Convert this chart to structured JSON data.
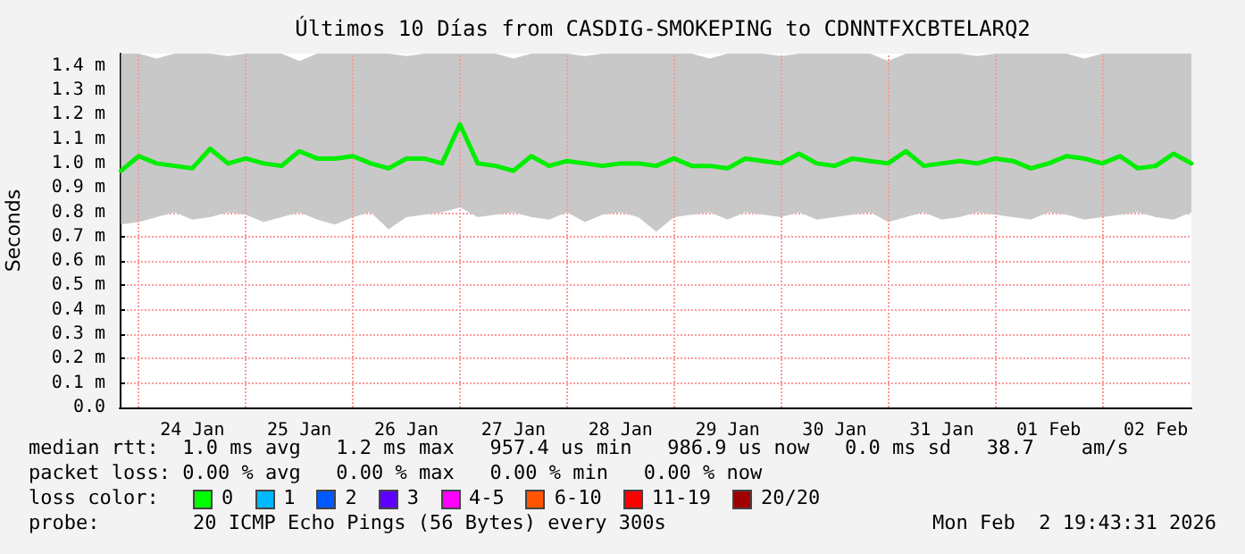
{
  "chart_data": {
    "type": "line",
    "title": "Últimos 10 Días from CASDIG-SMOKEPING to CDNNTFXCBTELARQ2",
    "ylabel": "Seconds",
    "x": [
      "2026-01-23T20:00",
      "2026-01-24T00:00",
      "2026-01-24T04:00",
      "2026-01-24T08:00",
      "2026-01-24T12:00",
      "2026-01-24T16:00",
      "2026-01-24T20:00",
      "2026-01-25T00:00",
      "2026-01-25T04:00",
      "2026-01-25T08:00",
      "2026-01-25T12:00",
      "2026-01-25T16:00",
      "2026-01-25T20:00",
      "2026-01-26T00:00",
      "2026-01-26T04:00",
      "2026-01-26T08:00",
      "2026-01-26T12:00",
      "2026-01-26T16:00",
      "2026-01-26T20:00",
      "2026-01-27T00:00",
      "2026-01-27T04:00",
      "2026-01-27T08:00",
      "2026-01-27T12:00",
      "2026-01-27T16:00",
      "2026-01-27T20:00",
      "2026-01-28T00:00",
      "2026-01-28T04:00",
      "2026-01-28T08:00",
      "2026-01-28T12:00",
      "2026-01-28T16:00",
      "2026-01-28T20:00",
      "2026-01-29T00:00",
      "2026-01-29T04:00",
      "2026-01-29T08:00",
      "2026-01-29T12:00",
      "2026-01-29T16:00",
      "2026-01-29T20:00",
      "2026-01-30T00:00",
      "2026-01-30T04:00",
      "2026-01-30T08:00",
      "2026-01-30T12:00",
      "2026-01-30T16:00",
      "2026-01-30T20:00",
      "2026-01-31T00:00",
      "2026-01-31T04:00",
      "2026-01-31T08:00",
      "2026-01-31T12:00",
      "2026-01-31T16:00",
      "2026-01-31T20:00",
      "2026-02-01T00:00",
      "2026-02-01T04:00",
      "2026-02-01T08:00",
      "2026-02-01T12:00",
      "2026-02-01T16:00",
      "2026-02-01T20:00",
      "2026-02-02T00:00",
      "2026-02-02T04:00",
      "2026-02-02T08:00",
      "2026-02-02T12:00",
      "2026-02-02T16:00",
      "2026-02-02T20:00"
    ],
    "series": [
      {
        "color": "#00ee00",
        "values": [
          0.97,
          1.03,
          1.0,
          0.99,
          0.98,
          1.06,
          1.0,
          1.02,
          1.0,
          0.99,
          1.05,
          1.02,
          1.02,
          1.03,
          1.0,
          0.98,
          1.02,
          1.02,
          1.0,
          1.16,
          1.0,
          0.99,
          0.97,
          1.03,
          0.99,
          1.01,
          1.0,
          0.99,
          1.0,
          1.0,
          0.99,
          1.02,
          0.99,
          0.99,
          0.98,
          1.02,
          1.01,
          1.0,
          1.04,
          1.0,
          0.99,
          1.02,
          1.01,
          1.0,
          1.05,
          0.99,
          1.0,
          1.01,
          1.0,
          1.02,
          1.01,
          0.98,
          1.0,
          1.03,
          1.02,
          1.0,
          1.03,
          0.98,
          0.99,
          1.04,
          1.0
        ],
        "lower": [
          0.75,
          0.76,
          0.78,
          0.8,
          0.77,
          0.78,
          0.8,
          0.79,
          0.76,
          0.78,
          0.8,
          0.77,
          0.75,
          0.78,
          0.8,
          0.73,
          0.78,
          0.79,
          0.8,
          0.82,
          0.78,
          0.79,
          0.8,
          0.78,
          0.77,
          0.8,
          0.76,
          0.79,
          0.8,
          0.78,
          0.72,
          0.78,
          0.79,
          0.8,
          0.77,
          0.8,
          0.79,
          0.78,
          0.8,
          0.77,
          0.78,
          0.79,
          0.8,
          0.76,
          0.78,
          0.8,
          0.77,
          0.78,
          0.8,
          0.79,
          0.78,
          0.77,
          0.8,
          0.79,
          0.77,
          0.78,
          0.79,
          0.8,
          0.78,
          0.77,
          0.8
        ],
        "upper": [
          1.45,
          1.45,
          1.43,
          1.45,
          1.45,
          1.45,
          1.44,
          1.45,
          1.45,
          1.45,
          1.42,
          1.45,
          1.45,
          1.45,
          1.45,
          1.45,
          1.44,
          1.45,
          1.45,
          1.45,
          1.45,
          1.45,
          1.43,
          1.45,
          1.45,
          1.45,
          1.44,
          1.45,
          1.45,
          1.45,
          1.45,
          1.45,
          1.45,
          1.43,
          1.45,
          1.45,
          1.45,
          1.44,
          1.45,
          1.45,
          1.45,
          1.45,
          1.45,
          1.42,
          1.45,
          1.45,
          1.45,
          1.45,
          1.44,
          1.45,
          1.45,
          1.45,
          1.45,
          1.45,
          1.43,
          1.45,
          1.45,
          1.45,
          1.45,
          1.45,
          1.45
        ]
      }
    ],
    "xlim": [
      "2026-01-23T19:43",
      "2026-02-02T20:00"
    ],
    "xticks": [
      {
        "value": "2026-01-24T12:00",
        "label": "24 Jan"
      },
      {
        "value": "2026-01-25T12:00",
        "label": "25 Jan"
      },
      {
        "value": "2026-01-26T12:00",
        "label": "26 Jan"
      },
      {
        "value": "2026-01-27T12:00",
        "label": "27 Jan"
      },
      {
        "value": "2026-01-28T12:00",
        "label": "28 Jan"
      },
      {
        "value": "2026-01-29T12:00",
        "label": "29 Jan"
      },
      {
        "value": "2026-01-30T12:00",
        "label": "30 Jan"
      },
      {
        "value": "2026-01-31T12:00",
        "label": "31 Jan"
      },
      {
        "value": "2026-02-01T12:00",
        "label": "01 Feb"
      },
      {
        "value": "2026-02-02T12:00",
        "label": "02 Feb"
      }
    ],
    "ylim": [
      0,
      1.45
    ],
    "yticks": [
      {
        "value": 0,
        "label": "0.0"
      },
      {
        "value": 0.1,
        "label": "0.1 m"
      },
      {
        "value": 0.2,
        "label": "0.2 m"
      },
      {
        "value": 0.3,
        "label": "0.3 m"
      },
      {
        "value": 0.4,
        "label": "0.4 m"
      },
      {
        "value": 0.5,
        "label": "0.5 m"
      },
      {
        "value": 0.6,
        "label": "0.6 m"
      },
      {
        "value": 0.7,
        "label": "0.7 m"
      },
      {
        "value": 0.8,
        "label": "0.8 m"
      },
      {
        "value": 0.9,
        "label": "0.9 m"
      },
      {
        "value": 1.0,
        "label": "1.0 m"
      },
      {
        "value": 1.1,
        "label": "1.1 m"
      },
      {
        "value": 1.2,
        "label": "1.2 m"
      },
      {
        "value": 1.3,
        "label": "1.3 m"
      },
      {
        "value": 1.4,
        "label": "1.4 m"
      }
    ],
    "ref_lines": [
      {
        "axis": "x",
        "value": "2026-01-24T00:00",
        "color": "#ff9999",
        "line_style": "dotted"
      },
      {
        "axis": "x",
        "value": "2026-01-25T00:00",
        "color": "#ff9999",
        "line_style": "dotted"
      },
      {
        "axis": "x",
        "value": "2026-01-26T00:00",
        "color": "#ff9999",
        "line_style": "dotted"
      },
      {
        "axis": "x",
        "value": "2026-01-27T00:00",
        "color": "#ff9999",
        "line_style": "dotted"
      },
      {
        "axis": "x",
        "value": "2026-01-28T00:00",
        "color": "#ff9999",
        "line_style": "dotted"
      },
      {
        "axis": "x",
        "value": "2026-01-29T00:00",
        "color": "#ff9999",
        "line_style": "dotted"
      },
      {
        "axis": "x",
        "value": "2026-01-30T00:00",
        "color": "#ff9999",
        "line_style": "dotted"
      },
      {
        "axis": "x",
        "value": "2026-01-31T00:00",
        "color": "#ff9999",
        "line_style": "dotted"
      },
      {
        "axis": "x",
        "value": "2026-02-01T00:00",
        "color": "#ff9999",
        "line_style": "dotted"
      },
      {
        "axis": "x",
        "value": "2026-02-02T00:00",
        "color": "#ff9999",
        "line_style": "dotted"
      }
    ],
    "grid": "y",
    "line_style": "solid",
    "annotations": [
      "median rtt:  1.0 ms avg   1.2 ms max   957.4 us min   986.9 us now   0.0 ms sd   38.7    am/s",
      "packet loss: 0.00 % avg   0.00 % max   0.00 % min   0.00 % now",
      "loss color:",
      "0",
      "1",
      "2",
      "3",
      "4-5",
      "6-10",
      "11-19",
      "20/20",
      "probe:",
      "20 ICMP Echo Pings (56 Bytes) every 300s",
      "Mon Feb  2 19:43:31 2026"
    ]
  }
}
